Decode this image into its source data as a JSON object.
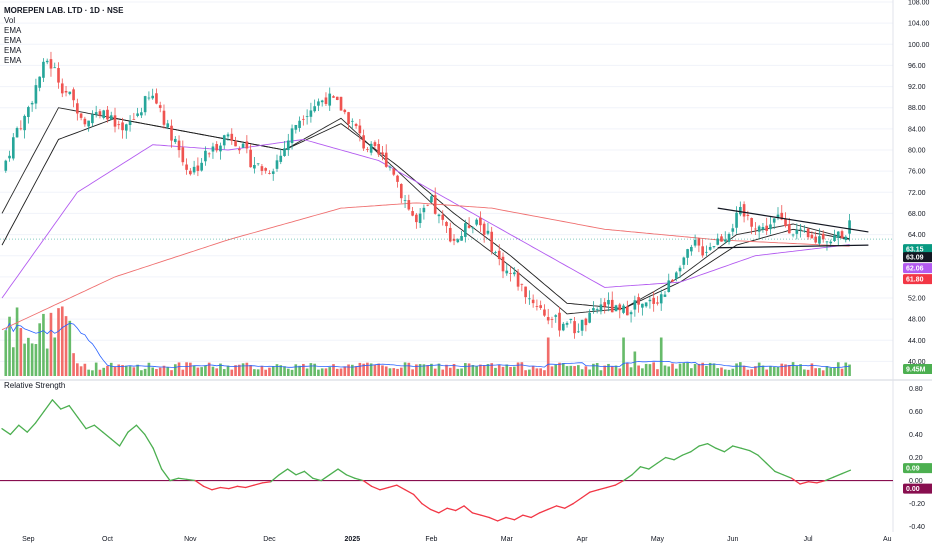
{
  "header": {
    "title": "MOREPEN LAB. LTD · 1D · NSE",
    "indicators": [
      "Vol",
      "EMA",
      "EMA",
      "EMA",
      "EMA"
    ]
  },
  "rs_panel": {
    "title": "Relative Strength"
  },
  "colors": {
    "up": "#26a69a",
    "up_vol": "#4caf50",
    "down": "#ef5350",
    "ema_fast": "#2a2a2a",
    "ema_slow": "#1e1e1e",
    "ema_50": "#b35bf0",
    "ema_200": "#ef6f6f",
    "vol_ma": "#2962ff",
    "rs_up": "#4caf50",
    "rs_down": "#f23645",
    "rs_zero": "#880e4f",
    "grid": "#f0f3fa",
    "trendline": "#131722"
  },
  "chart_data": [
    {
      "type": "candlestick",
      "title": "MOREPEN LAB. LTD · 1D · NSE",
      "x": [
        "Sep",
        "Oct",
        "Nov",
        "Dec",
        "2025",
        "Feb",
        "Mar",
        "Apr",
        "May",
        "Jun",
        "Jul",
        "Au"
      ],
      "y_ticks": [
        "108.00",
        "104.00",
        "100.00",
        "96.00",
        "92.00",
        "88.00",
        "84.00",
        "80.00",
        "76.00",
        "72.00",
        "68.00",
        "64.00",
        "60.00",
        "56.00",
        "52.00",
        "48.00",
        "44.00",
        "40.00"
      ],
      "ylim": [
        38,
        108
      ],
      "close_path": [
        [
          0,
          76
        ],
        [
          2,
          80
        ],
        [
          4,
          84
        ],
        [
          6,
          86
        ],
        [
          8,
          90
        ],
        [
          10,
          94
        ],
        [
          12,
          97
        ],
        [
          14,
          95
        ],
        [
          16,
          92
        ],
        [
          18,
          90
        ],
        [
          20,
          88
        ],
        [
          22,
          86
        ],
        [
          24,
          87
        ],
        [
          26,
          86
        ],
        [
          28,
          87
        ],
        [
          30,
          84
        ],
        [
          32,
          83
        ],
        [
          34,
          85
        ],
        [
          36,
          87
        ],
        [
          38,
          89
        ],
        [
          40,
          90
        ],
        [
          42,
          88
        ],
        [
          44,
          84
        ],
        [
          46,
          82
        ],
        [
          48,
          78
        ],
        [
          50,
          76
        ],
        [
          52,
          77
        ],
        [
          54,
          79
        ],
        [
          56,
          80
        ],
        [
          58,
          82
        ],
        [
          60,
          83
        ],
        [
          62,
          82
        ],
        [
          64,
          80
        ],
        [
          66,
          78
        ],
        [
          68,
          77
        ],
        [
          70,
          76
        ],
        [
          72,
          77
        ],
        [
          74,
          79
        ],
        [
          76,
          82
        ],
        [
          78,
          85
        ],
        [
          80,
          87
        ],
        [
          82,
          88
        ],
        [
          84,
          89
        ],
        [
          86,
          90
        ],
        [
          88,
          89
        ],
        [
          90,
          88
        ],
        [
          92,
          86
        ],
        [
          94,
          84
        ],
        [
          96,
          81
        ],
        [
          98,
          80
        ],
        [
          100,
          79
        ],
        [
          102,
          78
        ],
        [
          104,
          76
        ],
        [
          106,
          72
        ],
        [
          108,
          69
        ],
        [
          110,
          66
        ],
        [
          112,
          68
        ],
        [
          114,
          70
        ],
        [
          116,
          67
        ],
        [
          118,
          65
        ],
        [
          120,
          63
        ],
        [
          122,
          64
        ],
        [
          124,
          66
        ],
        [
          126,
          67
        ],
        [
          128,
          65
        ],
        [
          130,
          62
        ],
        [
          132,
          59
        ],
        [
          134,
          57
        ],
        [
          136,
          56
        ],
        [
          138,
          54
        ],
        [
          140,
          52
        ],
        [
          142,
          51
        ],
        [
          144,
          49
        ],
        [
          146,
          48
        ],
        [
          148,
          47
        ],
        [
          150,
          48
        ],
        [
          152,
          46
        ],
        [
          154,
          47
        ],
        [
          156,
          48
        ],
        [
          158,
          50
        ],
        [
          160,
          51
        ],
        [
          162,
          50
        ],
        [
          164,
          49
        ],
        [
          166,
          50
        ],
        [
          168,
          51
        ],
        [
          170,
          50
        ],
        [
          172,
          51
        ],
        [
          174,
          52
        ],
        [
          176,
          53
        ],
        [
          178,
          56
        ],
        [
          180,
          59
        ],
        [
          182,
          60
        ],
        [
          184,
          62
        ],
        [
          186,
          61
        ],
        [
          188,
          62
        ],
        [
          190,
          63
        ],
        [
          192,
          64
        ],
        [
          194,
          66
        ],
        [
          196,
          68
        ],
        [
          198,
          67
        ],
        [
          200,
          66
        ],
        [
          202,
          65
        ],
        [
          204,
          66
        ],
        [
          206,
          67
        ],
        [
          208,
          66
        ],
        [
          210,
          65
        ],
        [
          212,
          64
        ],
        [
          214,
          63
        ],
        [
          216,
          63
        ],
        [
          218,
          64
        ],
        [
          220,
          63
        ],
        [
          222,
          64
        ],
        [
          224,
          64.5
        ],
        [
          225,
          65.5
        ]
      ],
      "series": [
        {
          "name": "EMA",
          "values": [
            [
              0,
              68
            ],
            [
              15,
              88
            ],
            [
              30,
              86
            ],
            [
              45,
              84
            ],
            [
              60,
              82
            ],
            [
              75,
              80
            ],
            [
              90,
              86
            ],
            [
              105,
              76
            ],
            [
              120,
              66
            ],
            [
              135,
              58
            ],
            [
              150,
              49
            ],
            [
              165,
              50
            ],
            [
              180,
              56
            ],
            [
              195,
              64
            ],
            [
              210,
              66
            ],
            [
              225,
              63.2
            ]
          ]
        },
        {
          "name": "EMA",
          "values": [
            [
              0,
              62
            ],
            [
              15,
              82
            ],
            [
              30,
              86
            ],
            [
              45,
              84
            ],
            [
              60,
              82
            ],
            [
              75,
              80
            ],
            [
              90,
              85
            ],
            [
              105,
              77
            ],
            [
              120,
              68
            ],
            [
              135,
              60
            ],
            [
              150,
              51
            ],
            [
              165,
              50
            ],
            [
              180,
              55
            ],
            [
              195,
              62
            ],
            [
              210,
              65
            ],
            [
              225,
              63.1
            ]
          ]
        },
        {
          "name": "EMA",
          "values": [
            [
              0,
              52
            ],
            [
              20,
              72
            ],
            [
              40,
              81
            ],
            [
              60,
              80
            ],
            [
              80,
              82
            ],
            [
              100,
              78
            ],
            [
              120,
              70
            ],
            [
              140,
              62
            ],
            [
              160,
              54
            ],
            [
              180,
              55
            ],
            [
              200,
              60
            ],
            [
              225,
              62.1
            ]
          ]
        },
        {
          "name": "EMA",
          "values": [
            [
              0,
              46
            ],
            [
              30,
              56
            ],
            [
              60,
              63
            ],
            [
              90,
              69
            ],
            [
              110,
              70
            ],
            [
              130,
              69
            ],
            [
              160,
              65
            ],
            [
              190,
              63
            ],
            [
              225,
              61.8
            ]
          ]
        }
      ],
      "trendlines": [
        {
          "from": [
            190,
            69
          ],
          "to": [
            230,
            64.5
          ]
        },
        {
          "from": [
            190,
            61.5
          ],
          "to": [
            230,
            62
          ]
        }
      ],
      "price_tags": [
        {
          "label": "63.15",
          "value": 63.15,
          "color": "#089981"
        },
        {
          "label": "63.09",
          "value": 63.09,
          "color": "#131722"
        },
        {
          "label": "62.06",
          "value": 62.06,
          "color": "#b35bf0"
        },
        {
          "label": "61.80",
          "value": 61.8,
          "color": "#f23645"
        }
      ],
      "volume_tag": {
        "label": "9.45M",
        "color": "#4caf50"
      }
    },
    {
      "type": "line",
      "title": "Relative Strength",
      "y_ticks": [
        "0.80",
        "0.60",
        "0.40",
        "0.20",
        "0.00",
        "-0.20",
        "-0.40"
      ],
      "ylim": [
        -0.42,
        0.82
      ],
      "zero_line": 0.0,
      "values": [
        [
          0,
          0.45
        ],
        [
          2,
          0.4
        ],
        [
          4,
          0.48
        ],
        [
          6,
          0.42
        ],
        [
          8,
          0.5
        ],
        [
          10,
          0.6
        ],
        [
          12,
          0.7
        ],
        [
          14,
          0.62
        ],
        [
          16,
          0.65
        ],
        [
          18,
          0.55
        ],
        [
          20,
          0.45
        ],
        [
          22,
          0.48
        ],
        [
          24,
          0.42
        ],
        [
          26,
          0.36
        ],
        [
          28,
          0.3
        ],
        [
          30,
          0.42
        ],
        [
          32,
          0.48
        ],
        [
          34,
          0.4
        ],
        [
          36,
          0.28
        ],
        [
          38,
          0.1
        ],
        [
          40,
          0.0
        ],
        [
          42,
          0.02
        ],
        [
          44,
          0.01
        ],
        [
          46,
          0.0
        ],
        [
          48,
          -0.05
        ],
        [
          50,
          -0.08
        ],
        [
          52,
          -0.06
        ],
        [
          54,
          -0.07
        ],
        [
          56,
          -0.05
        ],
        [
          58,
          -0.06
        ],
        [
          60,
          -0.04
        ],
        [
          62,
          -0.02
        ],
        [
          64,
          -0.01
        ],
        [
          66,
          0.05
        ],
        [
          68,
          0.1
        ],
        [
          70,
          0.05
        ],
        [
          72,
          0.08
        ],
        [
          74,
          0.02
        ],
        [
          76,
          0.0
        ],
        [
          78,
          0.05
        ],
        [
          80,
          0.1
        ],
        [
          82,
          0.05
        ],
        [
          84,
          0.02
        ],
        [
          86,
          0.0
        ],
        [
          88,
          -0.05
        ],
        [
          90,
          -0.08
        ],
        [
          92,
          -0.06
        ],
        [
          94,
          -0.04
        ],
        [
          96,
          -0.08
        ],
        [
          98,
          -0.12
        ],
        [
          100,
          -0.2
        ],
        [
          102,
          -0.25
        ],
        [
          104,
          -0.28
        ],
        [
          106,
          -0.24
        ],
        [
          108,
          -0.26
        ],
        [
          110,
          -0.22
        ],
        [
          112,
          -0.28
        ],
        [
          114,
          -0.3
        ],
        [
          116,
          -0.32
        ],
        [
          118,
          -0.35
        ],
        [
          120,
          -0.32
        ],
        [
          122,
          -0.34
        ],
        [
          124,
          -0.3
        ],
        [
          126,
          -0.32
        ],
        [
          128,
          -0.28
        ],
        [
          130,
          -0.25
        ],
        [
          132,
          -0.22
        ],
        [
          134,
          -0.24
        ],
        [
          136,
          -0.2
        ],
        [
          138,
          -0.15
        ],
        [
          140,
          -0.1
        ],
        [
          142,
          -0.08
        ],
        [
          144,
          -0.06
        ],
        [
          146,
          -0.04
        ],
        [
          148,
          0.0
        ],
        [
          150,
          0.05
        ],
        [
          152,
          0.12
        ],
        [
          154,
          0.1
        ],
        [
          156,
          0.15
        ],
        [
          158,
          0.2
        ],
        [
          160,
          0.18
        ],
        [
          162,
          0.22
        ],
        [
          164,
          0.25
        ],
        [
          166,
          0.3
        ],
        [
          168,
          0.32
        ],
        [
          170,
          0.28
        ],
        [
          172,
          0.25
        ],
        [
          174,
          0.3
        ],
        [
          176,
          0.28
        ],
        [
          178,
          0.26
        ],
        [
          180,
          0.22
        ],
        [
          182,
          0.15
        ],
        [
          184,
          0.08
        ],
        [
          186,
          0.05
        ],
        [
          188,
          0.02
        ],
        [
          190,
          -0.03
        ],
        [
          192,
          -0.01
        ],
        [
          194,
          -0.02
        ],
        [
          196,
          0.0
        ],
        [
          198,
          0.03
        ],
        [
          200,
          0.06
        ],
        [
          202,
          0.09
        ]
      ],
      "tags": [
        {
          "label": "0.09",
          "value": 0.09,
          "color": "#4caf50"
        },
        {
          "label": "0.00",
          "value": 0.0,
          "color": "#880e4f"
        }
      ]
    }
  ]
}
